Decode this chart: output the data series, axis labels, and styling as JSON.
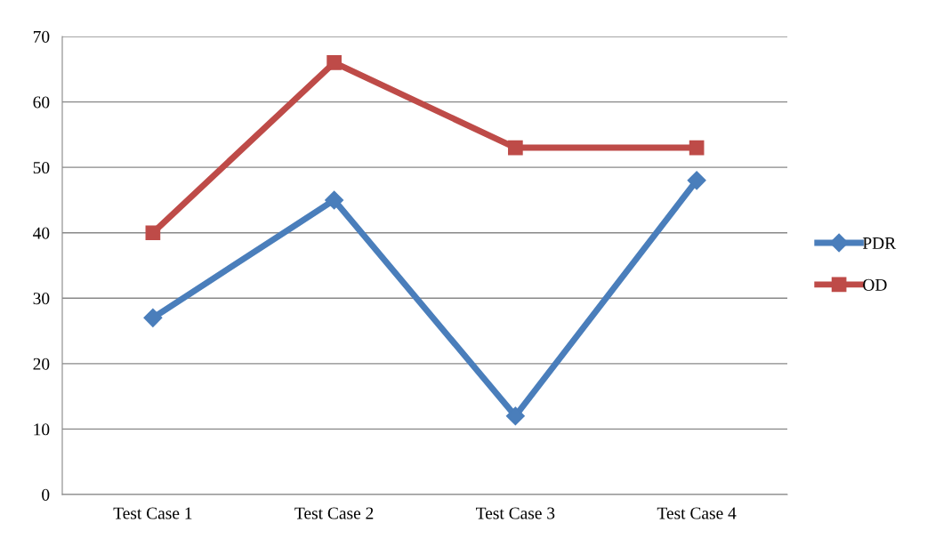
{
  "chart_data": {
    "type": "line",
    "categories": [
      "Test Case 1",
      "Test Case 2",
      "Test Case 3",
      "Test Case 4"
    ],
    "series": [
      {
        "name": "PDR",
        "color": "#4a7ebb",
        "marker": "diamond",
        "values": [
          27,
          45,
          12,
          48
        ]
      },
      {
        "name": "OD",
        "color": "#be4b48",
        "marker": "square",
        "values": [
          40,
          66,
          53,
          53
        ]
      }
    ],
    "ylim": [
      0,
      70
    ],
    "yticks": [
      0,
      10,
      20,
      30,
      40,
      50,
      60,
      70
    ],
    "grid": "y",
    "legend": "right",
    "line_style": "solid"
  }
}
